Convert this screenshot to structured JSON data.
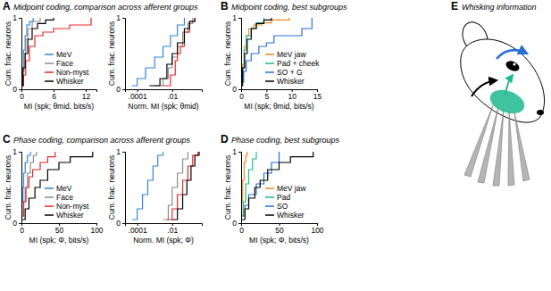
{
  "panels": [
    {
      "letter": "A",
      "title": "Midpoint coding, comparison across afferent groups"
    },
    {
      "letter": "B",
      "title": "Midpoint coding, best subgroups"
    },
    {
      "letter": "C",
      "title": "Phase coding, comparison across afferent groups"
    },
    {
      "letter": "D",
      "title": "Phase coding, best subgroups"
    },
    {
      "letter": "E",
      "title": "Whisking information"
    }
  ],
  "chart_data": [
    {
      "type": "line",
      "x_label": "MI (spk; θmid, bits/s)",
      "y_label": "Cum. frac. neurons",
      "xlim": [
        0,
        14
      ],
      "ylim": [
        0,
        1
      ],
      "xticks": [
        0,
        6,
        12
      ],
      "yticks": [
        0,
        1
      ],
      "legend": "lower right",
      "series": [
        {
          "name": "MeV",
          "color": "#2f86d8",
          "x": [
            0.05,
            0.2,
            0.4,
            0.7,
            1.0,
            1.5,
            2.2
          ],
          "values": [
            0.1,
            0.3,
            0.55,
            0.75,
            0.9,
            0.95,
            1
          ]
        },
        {
          "name": "Face",
          "color": "#8c8c8c",
          "x": [
            0.05,
            0.2,
            0.5,
            0.8,
            1.2,
            2,
            3.5
          ],
          "values": [
            0.05,
            0.25,
            0.5,
            0.7,
            0.85,
            0.95,
            1
          ]
        },
        {
          "name": "Non-myst",
          "color": "#e8282b",
          "x": [
            0.1,
            0.4,
            0.8,
            1.5,
            2.5,
            4,
            6,
            9,
            13
          ],
          "values": [
            0.05,
            0.2,
            0.4,
            0.6,
            0.75,
            0.8,
            0.85,
            0.9,
            1
          ]
        },
        {
          "name": "Whisker",
          "color": "#000000",
          "x": [
            0.05,
            0.3,
            0.7,
            1.2,
            2,
            3,
            4.5,
            6
          ],
          "values": [
            0.05,
            0.3,
            0.5,
            0.7,
            0.85,
            0.92,
            0.97,
            1
          ]
        }
      ]
    },
    {
      "type": "line",
      "x_label": "Norm. MI (spk; θmid)",
      "y_label": "Cum. frac. neurons",
      "log": "x",
      "xlim": [
        2e-05,
        0.5
      ],
      "ylim": [
        0,
        1
      ],
      "xticks": [
        {
          "value": 0.0001,
          "label": ".0001"
        },
        {
          "value": 0.01,
          "label": ".01"
        }
      ],
      "yticks": [
        0,
        1
      ],
      "series": [
        {
          "color": "#2f86d8",
          "x": [
            5e-05,
            0.0001,
            0.0003,
            0.001,
            0.003,
            0.008,
            0.02,
            0.05
          ],
          "values": [
            0.05,
            0.15,
            0.3,
            0.45,
            0.6,
            0.75,
            0.9,
            1
          ]
        },
        {
          "color": "#8c8c8c",
          "x": [
            0.001,
            0.003,
            0.006,
            0.01,
            0.02,
            0.04,
            0.08,
            0.15
          ],
          "values": [
            0.05,
            0.15,
            0.3,
            0.45,
            0.6,
            0.8,
            0.92,
            1
          ]
        },
        {
          "color": "#e8282b",
          "x": [
            0.003,
            0.008,
            0.015,
            0.02,
            0.03,
            0.05,
            0.1,
            0.2
          ],
          "values": [
            0.05,
            0.2,
            0.4,
            0.5,
            0.6,
            0.8,
            0.95,
            1
          ]
        },
        {
          "color": "#000000",
          "x": [
            0.0005,
            0.002,
            0.005,
            0.01,
            0.02,
            0.05,
            0.1,
            0.2
          ],
          "values": [
            0.05,
            0.15,
            0.35,
            0.5,
            0.65,
            0.85,
            0.95,
            1
          ]
        }
      ]
    },
    {
      "type": "line",
      "x_label": "MI (spk; θmid, bits/s)",
      "y_label": "Cum. frac. neurons",
      "xlim": [
        0,
        15
      ],
      "ylim": [
        0,
        1
      ],
      "xticks": [
        0,
        5,
        10,
        15
      ],
      "yticks": [
        0,
        1
      ],
      "legend": "lower right",
      "series": [
        {
          "name": "MeV jaw",
          "color": "#f28a22",
          "x": [
            0.1,
            0.3,
            0.6,
            1,
            1.5,
            2.5,
            4,
            6,
            9.5
          ],
          "values": [
            0.1,
            0.35,
            0.6,
            0.75,
            0.85,
            0.9,
            0.93,
            0.97,
            1
          ]
        },
        {
          "name": "Pad + cheek",
          "color": "#1fb98e",
          "x": [
            0.1,
            0.3,
            0.6,
            1,
            2,
            3,
            4.5
          ],
          "values": [
            0.1,
            0.3,
            0.55,
            0.75,
            0.85,
            0.93,
            1
          ]
        },
        {
          "name": "SO + G",
          "color": "#2a6fd8",
          "x": [
            0.2,
            0.5,
            1,
            2,
            3.5,
            5,
            6.5,
            12,
            14
          ],
          "values": [
            0.1,
            0.25,
            0.4,
            0.5,
            0.6,
            0.65,
            0.75,
            0.85,
            1
          ]
        },
        {
          "name": "Whisker",
          "color": "#000000",
          "x": [
            0.05,
            0.3,
            0.7,
            1.2,
            2,
            3,
            4.5,
            6
          ],
          "values": [
            0.05,
            0.3,
            0.5,
            0.7,
            0.85,
            0.92,
            0.97,
            1
          ]
        }
      ]
    },
    {
      "type": "line",
      "x_label": "MI (spk; Φ, bits/s)",
      "y_label": "Cum. frac. neurons",
      "xlim": [
        0,
        100
      ],
      "ylim": [
        0,
        1
      ],
      "xticks": [
        0,
        50,
        100
      ],
      "yticks": [
        0,
        1
      ],
      "legend": "lower right",
      "series": [
        {
          "name": "MeV",
          "color": "#2f86d8",
          "x": [
            0.5,
            1,
            2,
            3,
            5,
            8,
            12
          ],
          "values": [
            0.1,
            0.3,
            0.5,
            0.7,
            0.85,
            0.95,
            1
          ]
        },
        {
          "name": "Face",
          "color": "#8c8c8c",
          "x": [
            1,
            3,
            5,
            8,
            12,
            16,
            20
          ],
          "values": [
            0.1,
            0.3,
            0.5,
            0.7,
            0.85,
            0.95,
            1
          ]
        },
        {
          "name": "Non-myst",
          "color": "#e8282b",
          "x": [
            1,
            3,
            6,
            10,
            15,
            25,
            35,
            45
          ],
          "values": [
            0.1,
            0.3,
            0.5,
            0.65,
            0.75,
            0.85,
            0.93,
            1
          ]
        },
        {
          "name": "Whisker",
          "color": "#000000",
          "x": [
            1,
            5,
            10,
            18,
            25,
            35,
            50,
            65,
            95
          ],
          "values": [
            0.05,
            0.2,
            0.35,
            0.5,
            0.6,
            0.75,
            0.85,
            0.93,
            1
          ]
        }
      ]
    },
    {
      "type": "line",
      "x_label": "Norm. MI (spk; Φ)",
      "y_label": "Cum. frac. neurons",
      "log": "x",
      "xlim": [
        2e-05,
        0.5
      ],
      "ylim": [
        0,
        1
      ],
      "xticks": [
        {
          "value": 0.0001,
          "label": ".0001"
        },
        {
          "value": 0.01,
          "label": ".01"
        }
      ],
      "yticks": [
        0,
        1
      ],
      "series": [
        {
          "color": "#2f86d8",
          "x": [
            5e-05,
            0.0001,
            0.0002,
            0.0004,
            0.0008,
            0.0015,
            0.003
          ],
          "values": [
            0.05,
            0.2,
            0.4,
            0.6,
            0.8,
            0.95,
            1
          ]
        },
        {
          "color": "#8c8c8c",
          "x": [
            0.003,
            0.006,
            0.01,
            0.02,
            0.04,
            0.08
          ],
          "values": [
            0.05,
            0.25,
            0.5,
            0.7,
            0.9,
            1
          ]
        },
        {
          "color": "#e8282b",
          "x": [
            0.005,
            0.01,
            0.02,
            0.04,
            0.08,
            0.15,
            0.3
          ],
          "values": [
            0.05,
            0.2,
            0.4,
            0.6,
            0.8,
            0.95,
            1
          ]
        },
        {
          "color": "#000000",
          "x": [
            0.01,
            0.02,
            0.04,
            0.07,
            0.12,
            0.2,
            0.35
          ],
          "values": [
            0.05,
            0.2,
            0.4,
            0.6,
            0.8,
            0.95,
            1
          ]
        }
      ]
    },
    {
      "type": "line",
      "x_label": "MI (spk; Φ, bits/s)",
      "y_label": "Cum. frac. neurons",
      "xlim": [
        0,
        100
      ],
      "ylim": [
        0,
        1
      ],
      "xticks": [
        0,
        50,
        100
      ],
      "yticks": [
        0,
        1
      ],
      "legend": "lower right",
      "series": [
        {
          "name": "MeV jaw",
          "color": "#f28a22",
          "x": [
            0.5,
            1,
            2,
            4,
            6,
            8
          ],
          "values": [
            0.1,
            0.3,
            0.6,
            0.85,
            0.95,
            1
          ]
        },
        {
          "name": "Pad",
          "color": "#1fb98e",
          "x": [
            1,
            3,
            6,
            10,
            15,
            20
          ],
          "values": [
            0.1,
            0.3,
            0.55,
            0.75,
            0.9,
            1
          ]
        },
        {
          "name": "SO",
          "color": "#2a6fd8",
          "x": [
            2,
            5,
            10,
            20,
            30,
            40,
            50
          ],
          "values": [
            0.1,
            0.25,
            0.4,
            0.55,
            0.7,
            0.85,
            1
          ]
        },
        {
          "name": "Whisker",
          "color": "#000000",
          "x": [
            1,
            5,
            10,
            18,
            25,
            35,
            50,
            65,
            95
          ],
          "values": [
            0.05,
            0.2,
            0.35,
            0.5,
            0.6,
            0.75,
            0.85,
            0.93,
            1
          ]
        }
      ]
    }
  ]
}
